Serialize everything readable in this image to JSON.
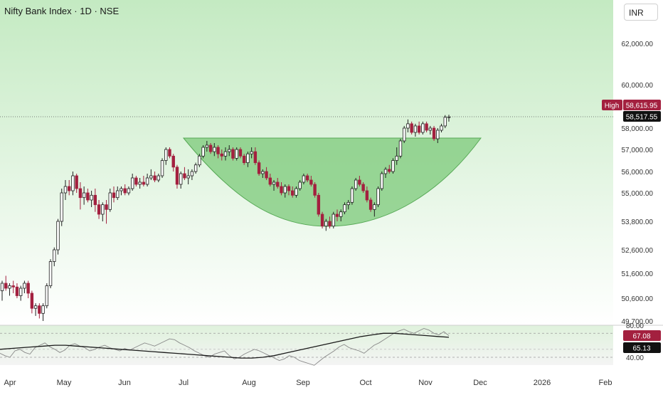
{
  "header": {
    "title": "Nifty Bank Index · 1D · NSE",
    "currency": "INR"
  },
  "colors": {
    "up": "#1f1f1f",
    "down": "#a3203f",
    "bowl_fill": "#7cc97a",
    "bg_top": "#c6ebc4",
    "rsi_line": "#888888",
    "rsi_ma": "#1a1a1a"
  },
  "labels": {
    "high_tag": "High",
    "high_value": "58,615.95",
    "last_value": "58,517.55",
    "rsi_value": "67.08",
    "rsi_ma_value": "65.13"
  },
  "chart_data": [
    {
      "type": "candlestick",
      "title": "Nifty Bank Index · 1D · NSE",
      "y_ticks": [
        "62,000.00",
        "60,000.00",
        "58,000.00",
        "57,000.00",
        "56,000.00",
        "55,000.00",
        "53,800.00",
        "52,600.00",
        "51,600.00",
        "50,600.00",
        "49,700.00"
      ],
      "x_ticks": [
        "Apr",
        "May",
        "Jun",
        "Jul",
        "Aug",
        "Sep",
        "Oct",
        "Nov",
        "Dec",
        "2026",
        "Feb"
      ],
      "annotations": [
        "cup pattern"
      ],
      "candles": [
        [
          0,
          50900,
          51300,
          50500,
          51200
        ],
        [
          1,
          51200,
          51500,
          50900,
          51000
        ],
        [
          2,
          51000,
          51200,
          50700,
          51100
        ],
        [
          3,
          51100,
          51300,
          50800,
          51050
        ],
        [
          4,
          51050,
          51200,
          50600,
          50700
        ],
        [
          5,
          50700,
          51100,
          50500,
          51000
        ],
        [
          6,
          51000,
          51300,
          50800,
          51200
        ],
        [
          7,
          51200,
          51300,
          50600,
          50800
        ],
        [
          8,
          50800,
          50900,
          50000,
          50200
        ],
        [
          9,
          50200,
          50400,
          49900,
          50300
        ],
        [
          10,
          50300,
          50400,
          49800,
          50000
        ],
        [
          11,
          50000,
          50400,
          49700,
          50300
        ],
        [
          12,
          50300,
          51200,
          50200,
          51100
        ],
        [
          13,
          51100,
          52200,
          51000,
          52100
        ],
        [
          14,
          52100,
          52700,
          51900,
          52600
        ],
        [
          15,
          52600,
          53900,
          52400,
          53800
        ],
        [
          16,
          53800,
          55200,
          53600,
          55000
        ],
        [
          17,
          55000,
          55600,
          54700,
          55300
        ],
        [
          18,
          55300,
          55600,
          54900,
          55100
        ],
        [
          19,
          55100,
          56000,
          54900,
          55800
        ],
        [
          20,
          55800,
          55900,
          55000,
          55200
        ],
        [
          21,
          55200,
          55500,
          54300,
          54800
        ],
        [
          22,
          54800,
          55300,
          54500,
          55000
        ],
        [
          23,
          55000,
          55200,
          54600,
          54700
        ],
        [
          24,
          54700,
          55100,
          54400,
          54900
        ],
        [
          25,
          54900,
          55200,
          54200,
          54500
        ],
        [
          26,
          54500,
          54700,
          53900,
          54100
        ],
        [
          27,
          54100,
          54600,
          53800,
          54500
        ],
        [
          28,
          54500,
          54700,
          53700,
          54300
        ],
        [
          29,
          54300,
          55200,
          54200,
          55000
        ],
        [
          30,
          55000,
          55300,
          54600,
          54800
        ],
        [
          31,
          54800,
          55300,
          54700,
          55100
        ],
        [
          32,
          55100,
          55300,
          54900,
          55200
        ],
        [
          33,
          55200,
          55400,
          54900,
          55000
        ],
        [
          34,
          55000,
          55300,
          54900,
          55200
        ],
        [
          35,
          55200,
          55900,
          55100,
          55700
        ],
        [
          36,
          55700,
          55800,
          55300,
          55400
        ],
        [
          37,
          55400,
          55700,
          55200,
          55500
        ],
        [
          38,
          55500,
          55800,
          55300,
          55400
        ],
        [
          39,
          55400,
          55900,
          55300,
          55700
        ],
        [
          40,
          55700,
          56100,
          55600,
          55800
        ],
        [
          41,
          55800,
          56000,
          55500,
          55600
        ],
        [
          42,
          55600,
          55900,
          55500,
          55800
        ],
        [
          43,
          55800,
          56600,
          55700,
          56500
        ],
        [
          44,
          56500,
          57100,
          56300,
          57000
        ],
        [
          45,
          57000,
          57100,
          56600,
          56700
        ],
        [
          46,
          56700,
          56800,
          56000,
          56200
        ],
        [
          47,
          56200,
          56300,
          55200,
          55400
        ],
        [
          48,
          55400,
          56000,
          55200,
          55900
        ],
        [
          49,
          55900,
          56200,
          55600,
          55700
        ],
        [
          50,
          55700,
          56100,
          55400,
          55800
        ],
        [
          51,
          55800,
          56100,
          55600,
          56000
        ],
        [
          52,
          56000,
          56400,
          55900,
          56300
        ],
        [
          53,
          56300,
          56800,
          56200,
          56700
        ],
        [
          54,
          56700,
          57200,
          56600,
          57100
        ],
        [
          55,
          57100,
          57400,
          56900,
          57200
        ],
        [
          56,
          57200,
          57300,
          56800,
          56900
        ],
        [
          57,
          56900,
          57300,
          56700,
          57100
        ],
        [
          58,
          57100,
          57200,
          56600,
          56800
        ],
        [
          59,
          56800,
          57000,
          56500,
          56700
        ],
        [
          60,
          56700,
          57100,
          56500,
          56900
        ],
        [
          61,
          56900,
          57200,
          56700,
          57000
        ],
        [
          62,
          57000,
          57100,
          56500,
          56600
        ],
        [
          63,
          56600,
          57100,
          56500,
          57000
        ],
        [
          64,
          57000,
          57100,
          56600,
          56700
        ],
        [
          65,
          56700,
          56800,
          56300,
          56400
        ],
        [
          66,
          56400,
          56900,
          56200,
          56800
        ],
        [
          67,
          56800,
          57100,
          56600,
          56900
        ],
        [
          68,
          56900,
          57100,
          56300,
          56400
        ],
        [
          69,
          56400,
          56500,
          55800,
          55900
        ],
        [
          70,
          55900,
          56100,
          55700,
          56000
        ],
        [
          71,
          56000,
          56200,
          55600,
          55700
        ],
        [
          72,
          55700,
          55900,
          55300,
          55400
        ],
        [
          73,
          55400,
          55600,
          55100,
          55500
        ],
        [
          74,
          55500,
          55700,
          55200,
          55300
        ],
        [
          75,
          55300,
          55500,
          54900,
          55000
        ],
        [
          76,
          55000,
          55400,
          54800,
          55300
        ],
        [
          77,
          55300,
          55400,
          54900,
          55100
        ],
        [
          78,
          55100,
          55300,
          54800,
          54900
        ],
        [
          79,
          54900,
          55300,
          54800,
          55200
        ],
        [
          80,
          55200,
          55600,
          55100,
          55500
        ],
        [
          81,
          55500,
          55900,
          55400,
          55800
        ],
        [
          82,
          55800,
          55900,
          55500,
          55600
        ],
        [
          83,
          55600,
          55800,
          55300,
          55400
        ],
        [
          84,
          55400,
          55500,
          54800,
          54900
        ],
        [
          85,
          54900,
          55000,
          54000,
          54100
        ],
        [
          86,
          54100,
          54200,
          53500,
          53600
        ],
        [
          87,
          53600,
          53900,
          53400,
          53800
        ],
        [
          88,
          53800,
          54000,
          53500,
          53600
        ],
        [
          89,
          53600,
          54200,
          53500,
          54100
        ],
        [
          90,
          54100,
          54300,
          53800,
          54000
        ],
        [
          91,
          54000,
          54300,
          53800,
          54200
        ],
        [
          92,
          54200,
          54600,
          54100,
          54500
        ],
        [
          93,
          54500,
          54700,
          54300,
          54600
        ],
        [
          94,
          54600,
          55300,
          54500,
          55200
        ],
        [
          95,
          55200,
          55700,
          55100,
          55600
        ],
        [
          96,
          55600,
          55800,
          55300,
          55400
        ],
        [
          97,
          55400,
          55500,
          55000,
          55100
        ],
        [
          98,
          55100,
          55300,
          54600,
          54700
        ],
        [
          99,
          54700,
          54800,
          54200,
          54300
        ],
        [
          100,
          54300,
          54600,
          54000,
          54500
        ],
        [
          101,
          54500,
          55300,
          54400,
          55200
        ],
        [
          102,
          55200,
          56000,
          55100,
          55900
        ],
        [
          103,
          55900,
          56200,
          55700,
          56100
        ],
        [
          104,
          56100,
          56300,
          55900,
          56000
        ],
        [
          105,
          56000,
          56600,
          55900,
          56500
        ],
        [
          106,
          56500,
          57100,
          56300,
          56700
        ],
        [
          107,
          56700,
          57500,
          56600,
          57400
        ],
        [
          108,
          57400,
          58100,
          57300,
          58000
        ],
        [
          109,
          58000,
          58400,
          57800,
          58200
        ],
        [
          110,
          58200,
          58300,
          57700,
          57800
        ],
        [
          111,
          57800,
          58200,
          57600,
          58100
        ],
        [
          112,
          58100,
          58300,
          57700,
          57800
        ],
        [
          113,
          57800,
          58300,
          57700,
          58200
        ],
        [
          114,
          58200,
          58300,
          57800,
          57900
        ],
        [
          115,
          57900,
          58100,
          57700,
          58000
        ],
        [
          116,
          58000,
          58100,
          57400,
          57500
        ],
        [
          117,
          57500,
          58000,
          57300,
          57900
        ],
        [
          118,
          57900,
          58200,
          57800,
          58100
        ],
        [
          119,
          58100,
          58600,
          58000,
          58500
        ],
        [
          120,
          58500,
          58616,
          58300,
          58517
        ]
      ]
    },
    {
      "type": "line",
      "title": "RSI",
      "y_ticks": [
        "80.00",
        "40.00"
      ],
      "series": [
        {
          "values": [
            45,
            42,
            40,
            48,
            50,
            46,
            44,
            52,
            55,
            58,
            53,
            50,
            46,
            49,
            55,
            57,
            54,
            52,
            48,
            50,
            53,
            55,
            52,
            50,
            48,
            51,
            49,
            52,
            55,
            58,
            56,
            54,
            57,
            60,
            63,
            62,
            58,
            55,
            52,
            48,
            45,
            42,
            40,
            44,
            46,
            48,
            42,
            38,
            40,
            44,
            47,
            50,
            48,
            45,
            42,
            39,
            36,
            38,
            42,
            40,
            36,
            34,
            32,
            30,
            35,
            40,
            44,
            48,
            53,
            56,
            52,
            50,
            48,
            45,
            50,
            55,
            58,
            62,
            66,
            70,
            73,
            75,
            72,
            70,
            73,
            76,
            74,
            70,
            68,
            72,
            67
          ]
        },
        {
          "values": [
            50,
            51,
            52,
            53,
            54,
            55,
            55,
            54,
            53,
            52,
            51,
            50,
            49,
            48,
            47,
            46,
            45,
            44,
            43,
            42,
            41,
            40,
            39,
            39,
            40,
            42,
            45,
            48,
            51,
            54,
            57,
            60,
            63,
            66,
            68,
            70,
            70,
            69,
            68,
            67,
            66,
            65
          ]
        }
      ]
    }
  ]
}
